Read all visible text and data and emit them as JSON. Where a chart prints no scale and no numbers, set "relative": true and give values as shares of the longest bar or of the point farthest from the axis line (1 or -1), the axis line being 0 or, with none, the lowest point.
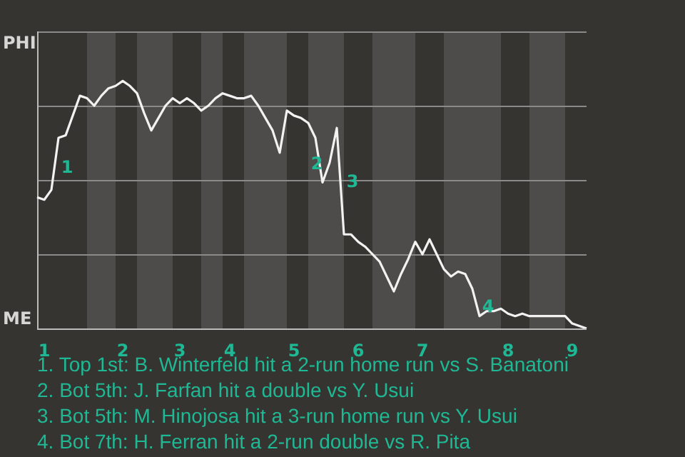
{
  "chart_data": {
    "type": "line",
    "relative": true,
    "categories": [
      null,
      "1",
      null,
      null,
      null,
      null,
      null,
      null,
      null,
      null,
      null,
      null,
      "2",
      null,
      null,
      null,
      null,
      null,
      null,
      null,
      "3",
      null,
      null,
      null,
      null,
      null,
      null,
      "4",
      null,
      null,
      null,
      null,
      null,
      null,
      null,
      null,
      "5",
      null,
      null,
      null,
      null,
      null,
      null,
      null,
      null,
      "6",
      null,
      null,
      null,
      null,
      null,
      null,
      null,
      null,
      "7",
      null,
      null,
      null,
      null,
      null,
      null,
      null,
      null,
      null,
      null,
      null,
      "8",
      null,
      null,
      null,
      null,
      null,
      null,
      null,
      null,
      "9",
      null,
      null
    ],
    "values": [
      0.53,
      0.52,
      0.56,
      0.77,
      0.78,
      0.86,
      0.94,
      0.93,
      0.9,
      0.94,
      0.97,
      0.98,
      1,
      0.98,
      0.95,
      0.87,
      0.8,
      0.85,
      0.9,
      0.93,
      0.91,
      0.93,
      0.91,
      0.88,
      0.9,
      0.93,
      0.95,
      0.94,
      0.93,
      0.93,
      0.94,
      0.9,
      0.85,
      0.8,
      0.71,
      0.88,
      0.86,
      0.85,
      0.83,
      0.77,
      0.59,
      0.67,
      0.81,
      0.38,
      0.38,
      0.35,
      0.33,
      0.3,
      0.27,
      0.21,
      0.15,
      0.22,
      0.28,
      0.35,
      0.3,
      0.36,
      0.3,
      0.24,
      0.21,
      0.23,
      0.22,
      0.16,
      0.05,
      0.07,
      0.07,
      0.08,
      0.06,
      0.05,
      0.06,
      0.05,
      0.05,
      0.05,
      0.05,
      0.05,
      0.05,
      0.02,
      0.01,
      0
    ],
    "color": "#f2f2f2",
    "marker": "none",
    "line_style": "solid",
    "grid": "y",
    "annotations": [
      "PHI",
      "ME",
      "1",
      "2",
      "3",
      "4",
      "1. Top 1st: B. Winterfeld hit a 2-run home run vs S. Banatoni",
      "2. Bot 5th: J. Farfan hit a double vs Y. Usui",
      "3. Bot 5th: M. Hinojosa hit a 3-run home run vs Y. Usui",
      "4. Bot 7th: H. Ferran hit a 2-run double vs R. Pita"
    ]
  }
}
